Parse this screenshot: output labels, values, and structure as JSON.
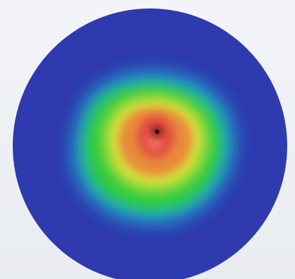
{
  "image": {
    "subject": "beam-intensity-profile",
    "colors": {
      "background": "#eef0f3",
      "disc": "#2e3aad",
      "cyan": "#1fb5d8",
      "green": "#2ecc3a",
      "yellow": "#d9e03a",
      "orange": "#e98a3a",
      "red": "#e04a3f",
      "core": "#2a0a0a"
    }
  }
}
